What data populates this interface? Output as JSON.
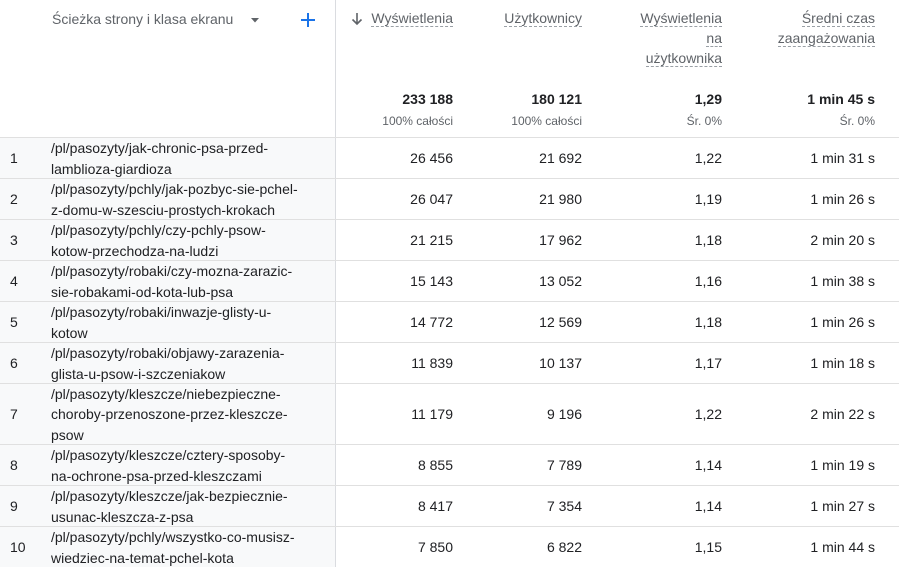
{
  "header": {
    "dimension_label": "Ścieżka strony i klasa ekranu",
    "columns": [
      {
        "key": "views",
        "line1": "Wyświetlenia",
        "line2": "",
        "line3": ""
      },
      {
        "key": "users",
        "line1": "Użytkownicy",
        "line2": "",
        "line3": ""
      },
      {
        "key": "vpu",
        "line1": "Wyświetlenia",
        "line2": "na",
        "line3": "użytkownika"
      },
      {
        "key": "engagement",
        "line1": "Średni czas",
        "line2": "zaangażowania",
        "line3": ""
      }
    ]
  },
  "totals": {
    "views": "233 188",
    "views_sub": "100% całości",
    "users": "180 121",
    "users_sub": "100% całości",
    "vpu": "1,29",
    "vpu_sub": "Śr. 0%",
    "engagement": "1 min 45 s",
    "engagement_sub": "Śr. 0%"
  },
  "rows": [
    {
      "idx": "1",
      "path1": "/pl/pasozyty/jak-chronic-psa-przed-",
      "path2": "lamblioza-giardioza",
      "path3": "",
      "views": "26 456",
      "users": "21 692",
      "vpu": "1,22",
      "engagement": "1 min 31 s"
    },
    {
      "idx": "2",
      "path1": "/pl/pasozyty/pchly/jak-pozbyc-sie-pchel-",
      "path2": "z-domu-w-szesciu-prostych-krokach",
      "path3": "",
      "views": "26 047",
      "users": "21 980",
      "vpu": "1,19",
      "engagement": "1 min 26 s"
    },
    {
      "idx": "3",
      "path1": "/pl/pasozyty/pchly/czy-pchly-psow-",
      "path2": "kotow-przechodza-na-ludzi",
      "path3": "",
      "views": "21 215",
      "users": "17 962",
      "vpu": "1,18",
      "engagement": "2 min 20 s"
    },
    {
      "idx": "4",
      "path1": "/pl/pasozyty/robaki/czy-mozna-zarazic-",
      "path2": "sie-robakami-od-kota-lub-psa",
      "path3": "",
      "views": "15 143",
      "users": "13 052",
      "vpu": "1,16",
      "engagement": "1 min 38 s"
    },
    {
      "idx": "5",
      "path1": "/pl/pasozyty/robaki/inwazje-glisty-u-",
      "path2": "kotow",
      "path3": "",
      "views": "14 772",
      "users": "12 569",
      "vpu": "1,18",
      "engagement": "1 min 26 s"
    },
    {
      "idx": "6",
      "path1": "/pl/pasozyty/robaki/objawy-zarazenia-",
      "path2": "glista-u-psow-i-szczeniakow",
      "path3": "",
      "views": "11 839",
      "users": "10 137",
      "vpu": "1,17",
      "engagement": "1 min 18 s"
    },
    {
      "idx": "7",
      "path1": "/pl/pasozyty/kleszcze/niebezpieczne-",
      "path2": "choroby-przenoszone-przez-kleszcze-",
      "path3": "psow",
      "views": "11 179",
      "users": "9 196",
      "vpu": "1,22",
      "engagement": "2 min 22 s"
    },
    {
      "idx": "8",
      "path1": "/pl/pasozyty/kleszcze/cztery-sposoby-",
      "path2": "na-ochrone-psa-przed-kleszczami",
      "path3": "",
      "views": "8 855",
      "users": "7 789",
      "vpu": "1,14",
      "engagement": "1 min 19 s"
    },
    {
      "idx": "9",
      "path1": "/pl/pasozyty/kleszcze/jak-bezpiecznie-",
      "path2": "usunac-kleszcza-z-psa",
      "path3": "",
      "views": "8 417",
      "users": "7 354",
      "vpu": "1,14",
      "engagement": "1 min 27 s"
    },
    {
      "idx": "10",
      "path1": "/pl/pasozyty/pchly/wszystko-co-musisz-",
      "path2": "wiedziec-na-temat-pchel-kota",
      "path3": "",
      "views": "7 850",
      "users": "6 822",
      "vpu": "1,15",
      "engagement": "1 min 44 s"
    }
  ],
  "colors": {
    "accent": "#1a73e8",
    "dim_bg": "#f8f9fa",
    "border": "#e0e0e0",
    "muted_text": "#5f6368"
  },
  "icons": {
    "sort": "arrow-down-icon",
    "caret": "caret-down-icon",
    "add": "plus-icon"
  }
}
